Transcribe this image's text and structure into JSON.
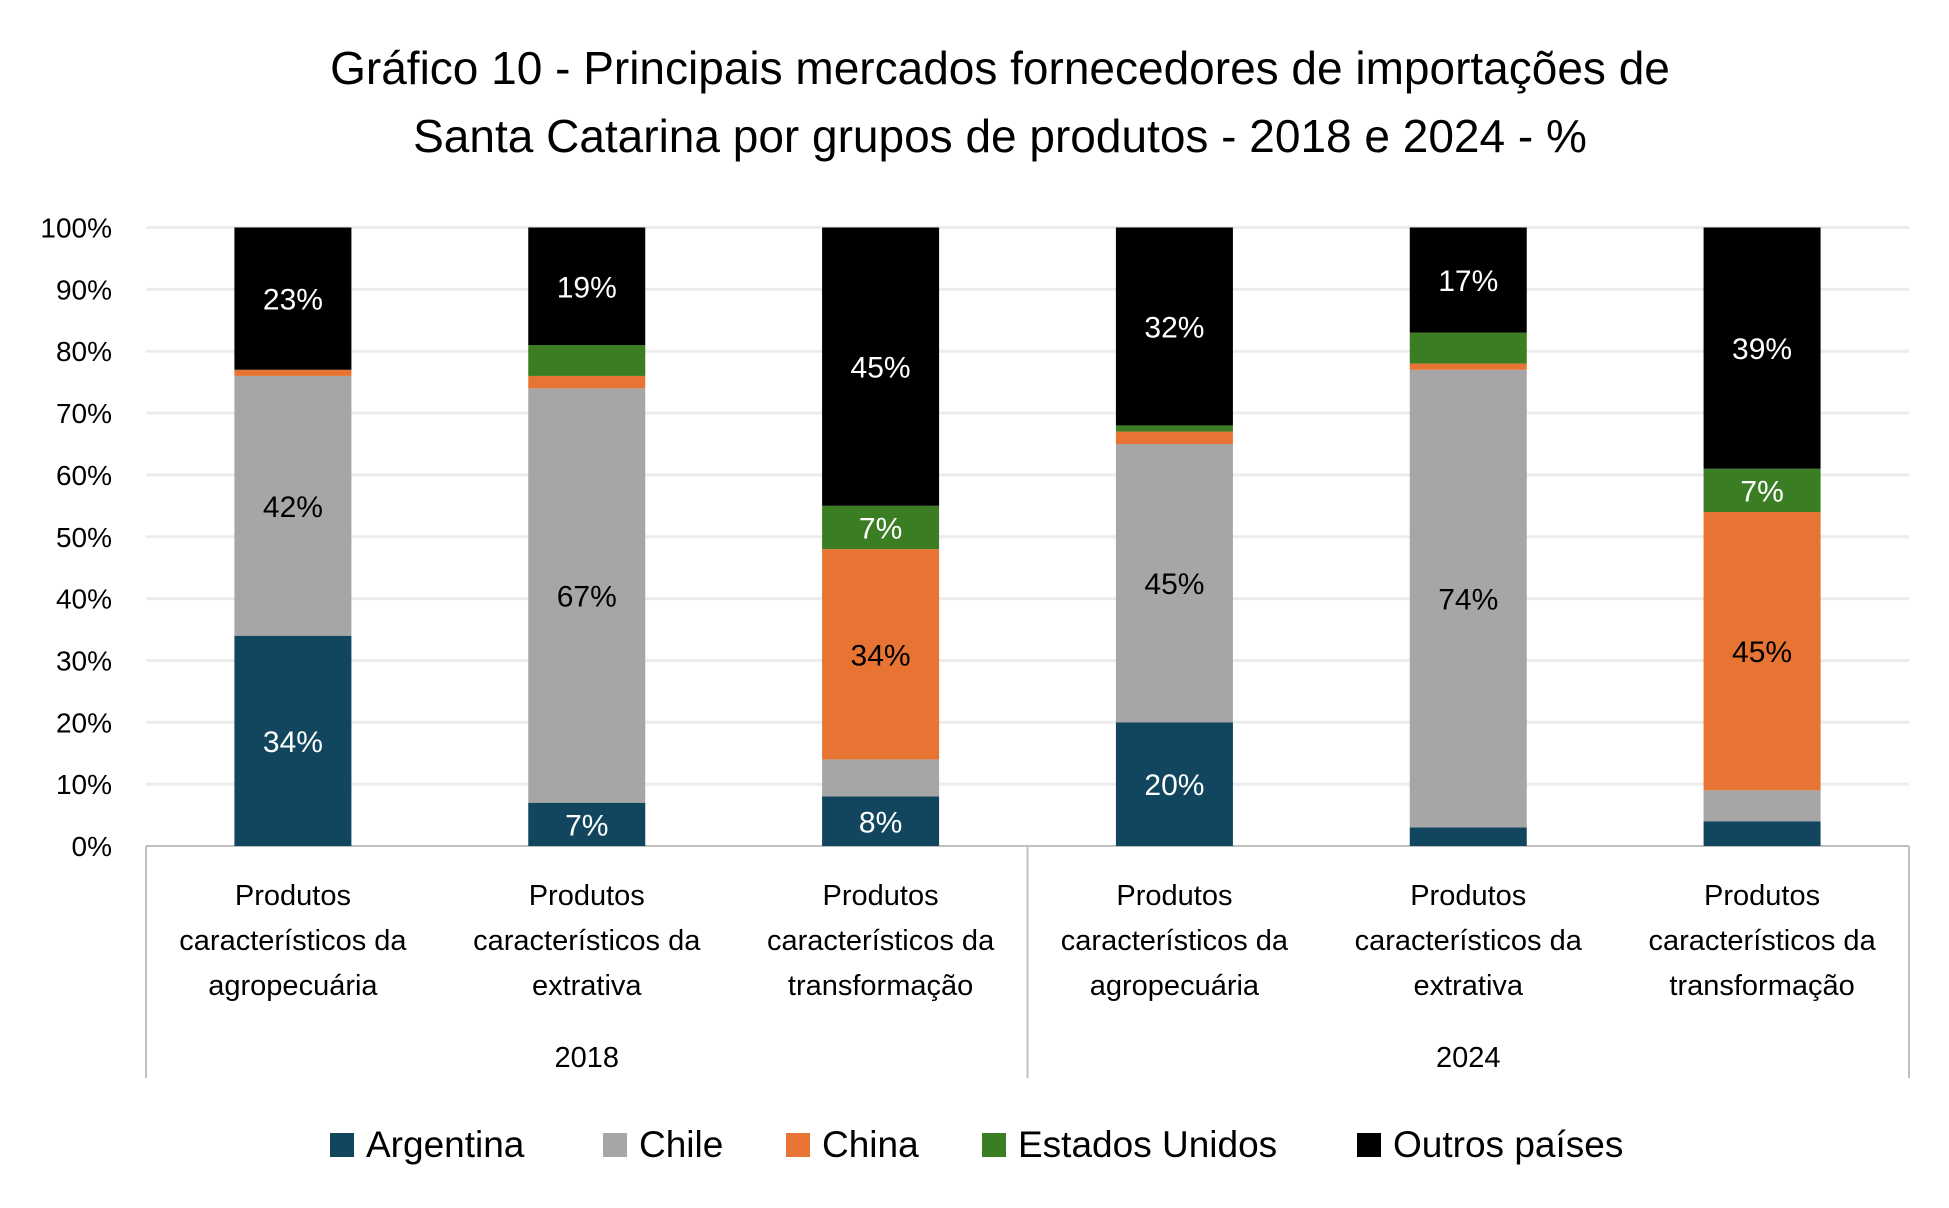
{
  "chart_data": {
    "type": "bar",
    "stacked": true,
    "title_lines": [
      "Gráfico 10 - Principais mercados fornecedores de importações de",
      "Santa Catarina por grupos de produtos - 2018 e 2024 - %"
    ],
    "groups": [
      {
        "label": "2018",
        "categories": [
          [
            "Produtos",
            "característicos da",
            "agropecuária"
          ],
          [
            "Produtos",
            "característicos da",
            "extrativa"
          ],
          [
            "Produtos",
            "característicos da",
            "transformação"
          ]
        ]
      },
      {
        "label": "2024",
        "categories": [
          [
            "Produtos",
            "característicos da",
            "agropecuária"
          ],
          [
            "Produtos",
            "característicos da",
            "extrativa"
          ],
          [
            "Produtos",
            "característicos da",
            "transformação"
          ]
        ]
      }
    ],
    "series": [
      {
        "name": "Argentina",
        "color": "#12465e",
        "label_color": "#ffffff",
        "values": [
          34,
          7,
          8,
          20,
          3,
          4
        ],
        "labels": [
          "34%",
          "7%",
          "8%",
          "20%",
          "",
          ""
        ]
      },
      {
        "name": "Chile",
        "color": "#a6a6a6",
        "label_color": "#000000",
        "values": [
          42,
          67,
          6,
          45,
          74,
          5
        ],
        "labels": [
          "42%",
          "67%",
          "",
          "45%",
          "74%",
          ""
        ]
      },
      {
        "name": "China",
        "color": "#e87433",
        "label_color": "#000000",
        "values": [
          1,
          2,
          34,
          2,
          1,
          45
        ],
        "labels": [
          "",
          "",
          "34%",
          "",
          "",
          "45%"
        ]
      },
      {
        "name": "Estados Unidos",
        "color": "#3a7d22",
        "label_color": "#ffffff",
        "values": [
          0,
          5,
          7,
          1,
          5,
          7
        ],
        "labels": [
          "",
          "",
          "7%",
          "",
          "",
          "7%"
        ]
      },
      {
        "name": "Outros países",
        "color": "#000000",
        "label_color": "#ffffff",
        "values": [
          23,
          19,
          45,
          32,
          17,
          39
        ],
        "labels": [
          "23%",
          "19%",
          "45%",
          "32%",
          "17%",
          "39%"
        ]
      }
    ],
    "y_ticks": [
      "0%",
      "10%",
      "20%",
      "30%",
      "40%",
      "50%",
      "60%",
      "70%",
      "80%",
      "90%",
      "100%"
    ],
    "ylim": [
      0,
      100
    ],
    "grid": true,
    "legend_position": "bottom"
  }
}
